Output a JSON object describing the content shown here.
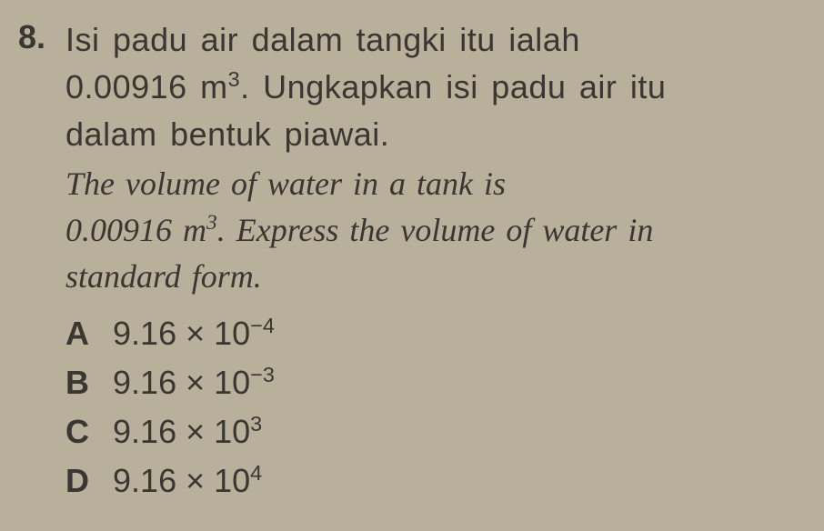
{
  "question": {
    "number": "8.",
    "malay_line1": "Isi padu air dalam tangki itu ialah",
    "malay_line2_value": "0.00916 m",
    "malay_line2_exp": "3",
    "malay_line2_rest": ". Ungkapkan isi padu air itu",
    "malay_line3": "dalam bentuk piawai.",
    "english_line1": "The volume of water in a tank is",
    "english_line2_value": "0.00916 m",
    "english_line2_exp": "3",
    "english_line2_rest": ". Express the volume of water in",
    "english_line3": "standard form."
  },
  "options": {
    "a": {
      "letter": "A",
      "mantissa": "9.16 × 10",
      "exponent": "−4"
    },
    "b": {
      "letter": "B",
      "mantissa": "9.16 × 10",
      "exponent": "−3"
    },
    "c": {
      "letter": "C",
      "mantissa": "9.16 × 10",
      "exponent": "3"
    },
    "d": {
      "letter": "D",
      "mantissa": "9.16 × 10",
      "exponent": "4"
    }
  },
  "colors": {
    "background": "#b8b09a",
    "text": "#3a3632"
  }
}
